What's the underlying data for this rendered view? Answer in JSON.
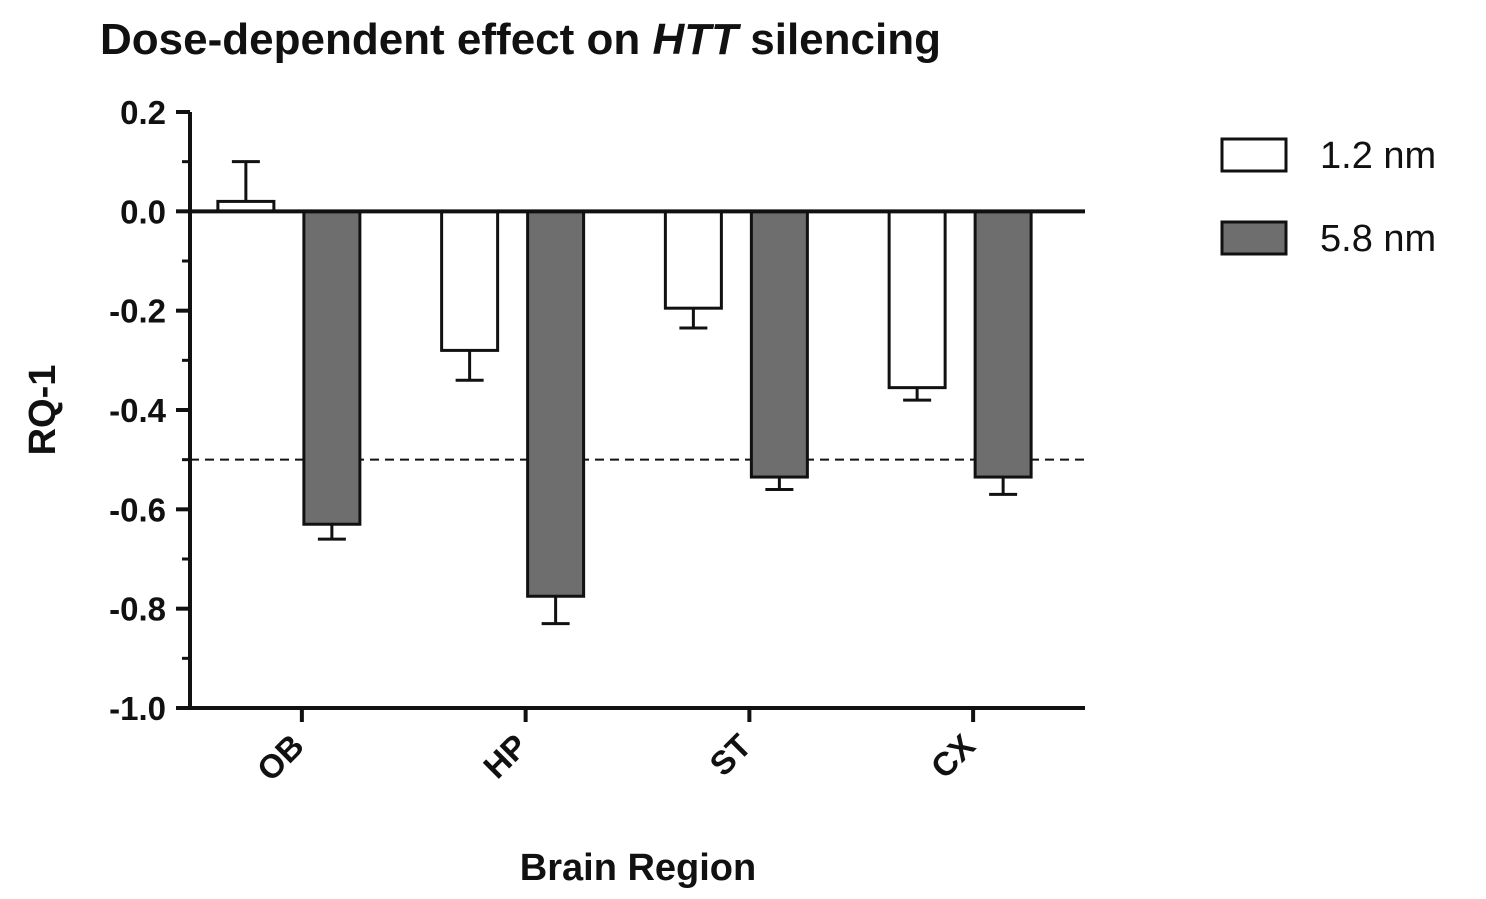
{
  "chart_data": {
    "type": "bar",
    "title_parts": {
      "before": "Dose-dependent effect on ",
      "italic": "HTT",
      "after": " silencing"
    },
    "xlabel": "Brain Region",
    "ylabel": "RQ-1",
    "ylim": [
      -1.0,
      0.2
    ],
    "yticks": [
      "0.2",
      "0.0",
      "-0.2",
      "-0.4",
      "-0.6",
      "-0.8",
      "-1.0"
    ],
    "categories": [
      "OB",
      "HP",
      "ST",
      "CX"
    ],
    "series": [
      {
        "name": "1.2 nm",
        "values": [
          0.02,
          -0.28,
          -0.195,
          -0.355
        ],
        "errors": [
          0.08,
          0.06,
          0.04,
          0.025
        ],
        "fill": "#ffffff"
      },
      {
        "name": "5.8 nm",
        "values": [
          -0.63,
          -0.775,
          -0.535,
          -0.535
        ],
        "errors": [
          0.03,
          0.055,
          0.025,
          0.035
        ],
        "fill": "#6e6e6e"
      }
    ],
    "reference_line": -0.5,
    "legend_position": "top-right"
  }
}
